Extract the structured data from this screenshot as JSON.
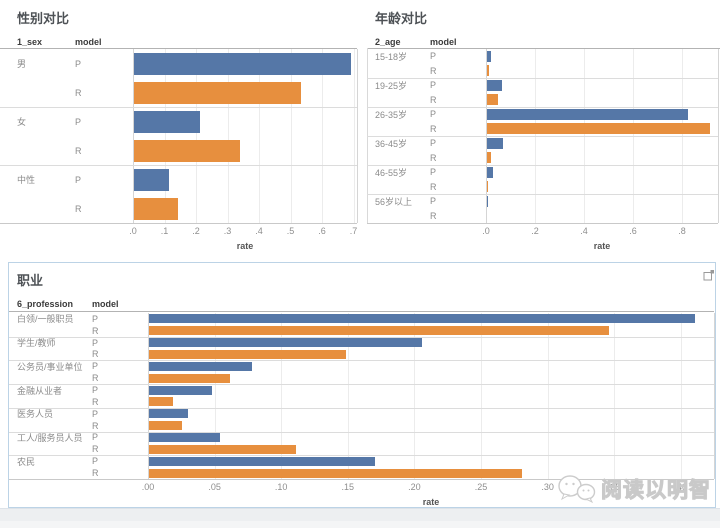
{
  "watermark": {
    "text": "阅读以明智",
    "logo": "chat-bubbles-logo"
  },
  "model_colors": {
    "P": "#5577a7",
    "R": "#e78f3e"
  },
  "panel_border_color": "#bcd3e6",
  "chart_data": [
    {
      "type": "bar",
      "orientation": "horizontal",
      "title": "性别对比",
      "dim_field": "1_sex",
      "model_field": "model",
      "xlabel": "rate",
      "ticks": [
        ".0",
        ".1",
        ".2",
        ".3",
        ".4",
        ".5",
        ".6",
        ".7"
      ],
      "xlim": [
        0,
        0.71
      ],
      "categories": [
        "男",
        "女",
        "中性"
      ],
      "series": [
        {
          "name": "P",
          "values": [
            0.69,
            0.21,
            0.11
          ]
        },
        {
          "name": "R",
          "values": [
            0.53,
            0.335,
            0.14
          ]
        }
      ]
    },
    {
      "type": "bar",
      "orientation": "horizontal",
      "title": "年龄对比",
      "dim_field": "2_age",
      "model_field": "model",
      "xlabel": "rate",
      "ticks": [
        ".0",
        ".2",
        ".4",
        ".6",
        ".8"
      ],
      "xlim": [
        0,
        0.95
      ],
      "categories": [
        "15-18岁",
        "19-25岁",
        "26-35岁",
        "36-45岁",
        "46-55岁",
        "56岁以上"
      ],
      "series": [
        {
          "name": "P",
          "values": [
            0.018,
            0.06,
            0.82,
            0.065,
            0.025,
            0.003
          ]
        },
        {
          "name": "R",
          "values": [
            0.01,
            0.045,
            0.91,
            0.017,
            0.004,
            0
          ]
        }
      ]
    },
    {
      "type": "bar",
      "orientation": "horizontal",
      "title": "职业",
      "dim_field": "6_profession",
      "model_field": "model",
      "xlabel": "rate",
      "ticks": [
        ".00",
        ".05",
        ".10",
        ".15",
        ".20",
        ".25",
        ".30",
        ".35",
        ".40"
      ],
      "xlim": [
        0,
        0.425
      ],
      "categories": [
        "白领/一般职员",
        "学生/教师",
        "公务员/事业单位",
        "金融从业者",
        "医务人员",
        "工人/服务员人员",
        "农民"
      ],
      "series": [
        {
          "name": "P",
          "values": [
            0.41,
            0.205,
            0.077,
            0.047,
            0.029,
            0.053,
            0.17
          ]
        },
        {
          "name": "R",
          "values": [
            0.345,
            0.148,
            0.061,
            0.018,
            0.025,
            0.11,
            0.28
          ]
        }
      ]
    }
  ]
}
